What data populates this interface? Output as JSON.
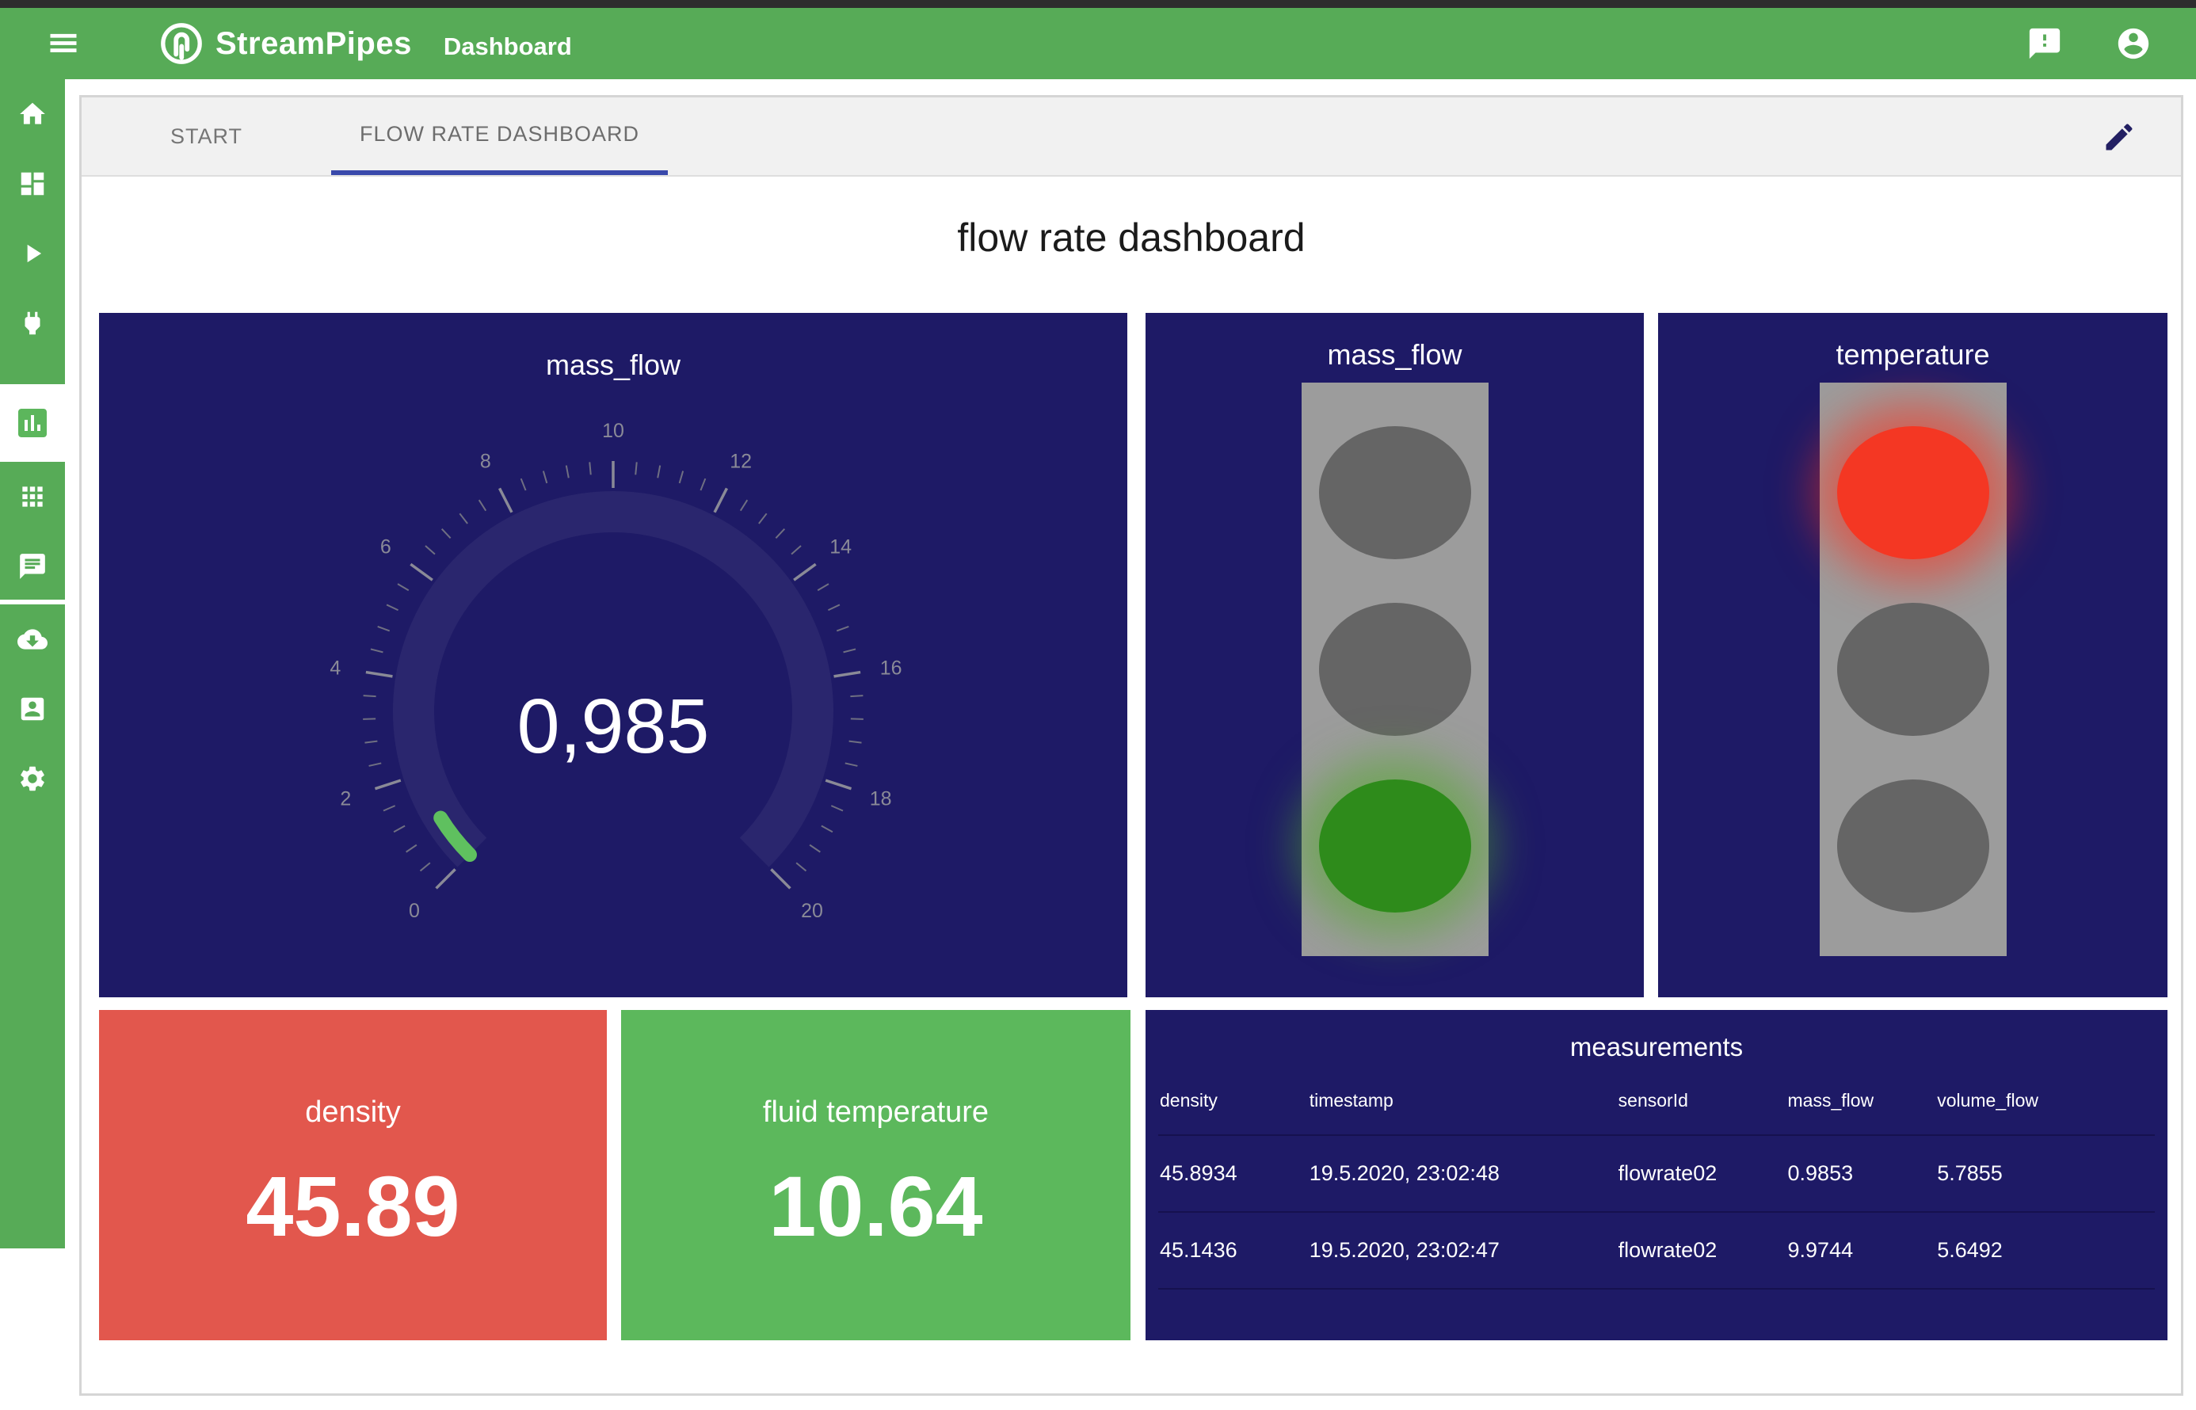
{
  "header": {
    "app_name": "StreamPipes",
    "module_title": "Dashboard",
    "bar_color": "#57ab57"
  },
  "sidebar": {
    "items": [
      {
        "icon": "home-icon"
      },
      {
        "icon": "dashboard-grid-icon"
      },
      {
        "icon": "play-icon"
      },
      {
        "icon": "plug-icon"
      },
      {
        "icon": "bar-chart-icon",
        "active": true
      },
      {
        "icon": "apps-grid-icon"
      },
      {
        "icon": "chat-icon"
      },
      {
        "icon": "cloud-download-icon"
      },
      {
        "icon": "account-box-icon"
      },
      {
        "icon": "gear-icon"
      }
    ]
  },
  "tabs": {
    "items": [
      {
        "label": "START",
        "active": false
      },
      {
        "label": "FLOW RATE DASHBOARD",
        "active": true
      }
    ],
    "active_underline_color": "#3949ab"
  },
  "page": {
    "title": "flow rate dashboard"
  },
  "colors": {
    "widget_background": "#1e1a66",
    "density_background": "#e2574d",
    "fluid_temperature_background": "#5cb85c",
    "traffic_green": "#2e8b1b",
    "traffic_red": "#f43723",
    "gauge_progress_green": "#5fc05f"
  },
  "chart_data": {
    "type": "gauge",
    "title": "mass_flow",
    "value": 0.985,
    "value_display": "0,985",
    "min": 0,
    "max": 20,
    "major_step": 2,
    "minor_per_major": 5,
    "start_angle": 225,
    "end_angle": -45,
    "tick_labels": [
      "0",
      "2",
      "4",
      "6",
      "8",
      "10",
      "12",
      "14",
      "16",
      "18",
      "20"
    ]
  },
  "widgets": {
    "gauge": {
      "title": "mass_flow",
      "value_display": "0,985"
    },
    "traffic_lights": [
      {
        "title": "mass_flow",
        "lights": [
          "off",
          "off",
          "green"
        ]
      },
      {
        "title": "temperature",
        "lights": [
          "red",
          "off",
          "off"
        ]
      }
    ],
    "numbers": [
      {
        "label": "density",
        "value": "45.89",
        "bg": "colors.density_background"
      },
      {
        "label": "fluid temperature",
        "value": "10.64",
        "bg": "colors.fluid_temperature_background"
      }
    ],
    "table": {
      "title": "measurements",
      "columns": [
        "density",
        "timestamp",
        "sensorId",
        "mass_flow",
        "volume_flow"
      ],
      "rows": [
        [
          "45.8934",
          "19.5.2020, 23:02:48",
          "flowrate02",
          "0.9853",
          "5.7855"
        ],
        [
          "45.1436",
          "19.5.2020, 23:02:47",
          "flowrate02",
          "9.9744",
          "5.6492"
        ]
      ]
    }
  }
}
